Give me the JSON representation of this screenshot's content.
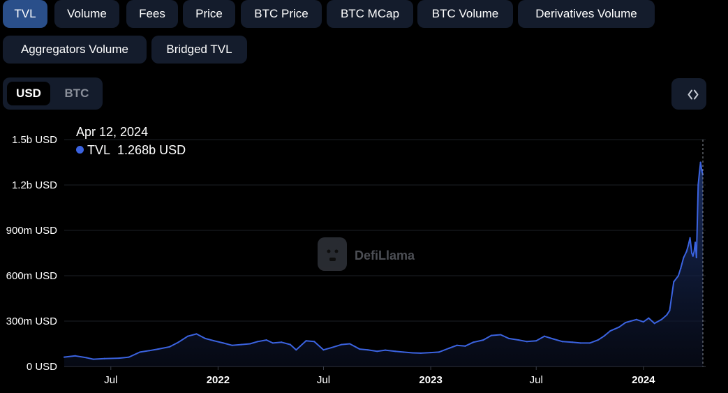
{
  "tabs": [
    {
      "label": "TVL",
      "active": true
    },
    {
      "label": "Volume",
      "active": false
    },
    {
      "label": "Fees",
      "active": false
    },
    {
      "label": "Price",
      "active": false
    },
    {
      "label": "BTC Price",
      "active": false
    },
    {
      "label": "BTC MCap",
      "active": false
    },
    {
      "label": "BTC Volume",
      "active": false
    },
    {
      "label": "Derivatives Volume",
      "active": false
    },
    {
      "label": "Aggregators Volume",
      "active": false
    },
    {
      "label": "Bridged TVL",
      "active": false
    }
  ],
  "currency": {
    "options": [
      "USD",
      "BTC"
    ],
    "selected": "USD"
  },
  "embed_icon": "code-brackets-icon",
  "tooltip": {
    "date": "Apr 12, 2024",
    "series": "TVL",
    "value": "1.268b USD"
  },
  "watermark": {
    "text": "DefiLlama",
    "icon": "llama-logo-icon"
  },
  "colors": {
    "line": "#3b63e0",
    "active_tab": "#2a4f8a",
    "tab_bg": "#141c2c"
  },
  "chart_data": {
    "type": "area",
    "series": [
      {
        "name": "TVL",
        "unit": "USD"
      }
    ],
    "x": [
      "2021-04-12",
      "2021-05-01",
      "2021-05-20",
      "2021-06-01",
      "2021-06-20",
      "2021-07-15",
      "2021-08-01",
      "2021-08-20",
      "2021-09-05",
      "2021-09-20",
      "2021-10-10",
      "2021-10-25",
      "2021-11-10",
      "2021-11-25",
      "2021-12-10",
      "2021-12-25",
      "2022-01-10",
      "2022-01-25",
      "2022-02-10",
      "2022-02-25",
      "2022-03-10",
      "2022-03-25",
      "2022-04-05",
      "2022-04-20",
      "2022-05-05",
      "2022-05-15",
      "2022-06-01",
      "2022-06-15",
      "2022-07-01",
      "2022-07-15",
      "2022-08-01",
      "2022-08-15",
      "2022-09-01",
      "2022-09-15",
      "2022-10-01",
      "2022-10-15",
      "2022-11-01",
      "2022-11-15",
      "2022-12-01",
      "2022-12-15",
      "2023-01-01",
      "2023-01-15",
      "2023-02-01",
      "2023-02-15",
      "2023-03-01",
      "2023-03-15",
      "2023-04-01",
      "2023-04-15",
      "2023-05-01",
      "2023-05-15",
      "2023-06-01",
      "2023-06-15",
      "2023-07-01",
      "2023-07-15",
      "2023-08-01",
      "2023-08-15",
      "2023-09-01",
      "2023-09-15",
      "2023-10-01",
      "2023-10-15",
      "2023-10-25",
      "2023-11-05",
      "2023-11-20",
      "2023-12-01",
      "2023-12-10",
      "2023-12-20",
      "2024-01-01",
      "2024-01-10",
      "2024-01-20",
      "2024-02-01",
      "2024-02-10",
      "2024-02-15",
      "2024-02-22",
      "2024-03-01",
      "2024-03-05",
      "2024-03-10",
      "2024-03-15",
      "2024-03-18",
      "2024-03-21",
      "2024-03-24",
      "2024-03-26",
      "2024-03-28",
      "2024-03-30",
      "2024-04-01",
      "2024-04-04",
      "2024-04-06",
      "2024-04-08",
      "2024-04-10",
      "2024-04-12"
    ],
    "values": [
      62000000,
      70000000,
      58000000,
      48000000,
      52000000,
      55000000,
      62000000,
      95000000,
      105000000,
      115000000,
      130000000,
      160000000,
      200000000,
      215000000,
      185000000,
      170000000,
      155000000,
      140000000,
      145000000,
      150000000,
      165000000,
      175000000,
      155000000,
      160000000,
      145000000,
      110000000,
      170000000,
      165000000,
      110000000,
      125000000,
      145000000,
      150000000,
      115000000,
      110000000,
      100000000,
      108000000,
      100000000,
      95000000,
      90000000,
      88000000,
      92000000,
      95000000,
      120000000,
      140000000,
      135000000,
      160000000,
      175000000,
      205000000,
      210000000,
      185000000,
      175000000,
      165000000,
      170000000,
      200000000,
      180000000,
      165000000,
      160000000,
      155000000,
      155000000,
      175000000,
      200000000,
      235000000,
      260000000,
      290000000,
      300000000,
      310000000,
      295000000,
      320000000,
      285000000,
      310000000,
      340000000,
      370000000,
      560000000,
      600000000,
      650000000,
      720000000,
      760000000,
      800000000,
      850000000,
      750000000,
      730000000,
      760000000,
      820000000,
      720000000,
      1200000000,
      1280000000,
      1350000000,
      1300000000,
      1268000000
    ],
    "xticks": [
      {
        "date": "2021-07-01",
        "label": "Jul",
        "bold": false
      },
      {
        "date": "2022-01-01",
        "label": "2022",
        "bold": true
      },
      {
        "date": "2022-07-01",
        "label": "Jul",
        "bold": false
      },
      {
        "date": "2023-01-01",
        "label": "2023",
        "bold": true
      },
      {
        "date": "2023-07-01",
        "label": "Jul",
        "bold": false
      },
      {
        "date": "2024-01-01",
        "label": "2024",
        "bold": true
      }
    ],
    "yticks": [
      {
        "value": 0,
        "label": "0 USD"
      },
      {
        "value": 300000000,
        "label": "300m USD"
      },
      {
        "value": 600000000,
        "label": "600m USD"
      },
      {
        "value": 900000000,
        "label": "900m USD"
      },
      {
        "value": 1200000000,
        "label": "1.2b USD"
      },
      {
        "value": 1500000000,
        "label": "1.5b USD"
      }
    ],
    "ylim": [
      0,
      1500000000
    ],
    "xlim": [
      "2021-04-12",
      "2024-04-12"
    ],
    "grid": true,
    "crosshair": "2024-04-12"
  }
}
